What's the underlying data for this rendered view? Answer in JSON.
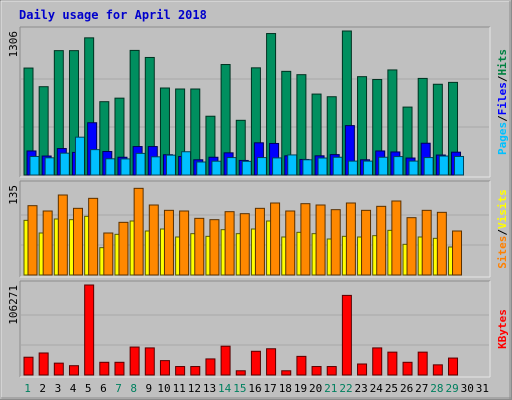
{
  "chart_data": {
    "type": "bar",
    "title": "Daily usage for April 2018",
    "days": [
      1,
      2,
      3,
      4,
      5,
      6,
      7,
      8,
      9,
      10,
      11,
      12,
      13,
      14,
      15,
      16,
      17,
      18,
      19,
      20,
      21,
      22,
      23,
      24,
      25,
      26,
      27,
      28,
      29,
      30,
      31
    ],
    "weekend_days": [
      1,
      7,
      8,
      14,
      15,
      21,
      22,
      28,
      29
    ],
    "panels": [
      {
        "id": "hits",
        "ymax_label": "1306",
        "ymax": 1306,
        "right_labels": [
          {
            "text": "Hits",
            "color": "#008040"
          },
          {
            "text": "/",
            "color": "#000000"
          },
          {
            "text": "Files",
            "color": "#0000ff"
          },
          {
            "text": "/",
            "color": "#000000"
          },
          {
            "text": "Pages",
            "color": "#00c0ff"
          }
        ],
        "series": [
          {
            "name": "Hits",
            "color": "#008f5f",
            "values": [
              970,
              801,
              1128,
              1128,
              1244,
              665,
              697,
              1130,
              1066,
              789,
              780,
              780,
              533,
              1002,
              496,
              972,
              1283,
              940,
              910,
              734,
              710,
              1306,
              892,
              866,
              953,
              616,
              876,
              823,
              840,
              0,
              0
            ]
          },
          {
            "name": "Files",
            "color": "#0000ff",
            "values": [
              218,
              172,
              240,
              205,
              474,
              213,
              161,
              258,
              258,
              184,
              168,
              138,
              161,
              201,
              132,
              292,
              286,
              174,
              141,
              174,
              185,
              448,
              138,
              218,
              209,
              154,
              288,
              181,
              207,
              0,
              0
            ]
          },
          {
            "name": "Pages",
            "color": "#00c0ff",
            "values": [
              168,
              156,
              198,
              343,
              230,
              147,
              146,
              196,
              165,
              180,
              211,
              118,
              125,
              158,
              124,
              158,
              155,
              182,
              138,
              154,
              161,
              126,
              126,
              161,
              167,
              126,
              158,
              172,
              168,
              0,
              0
            ]
          }
        ]
      },
      {
        "id": "visits",
        "ymax_label": "135",
        "ymax": 135,
        "right_labels": [
          {
            "text": "Visits",
            "color": "#ffff00"
          },
          {
            "text": "/",
            "color": "#000000"
          },
          {
            "text": "Sites",
            "color": "#ff8000"
          }
        ],
        "series": [
          {
            "name": "Visits",
            "color": "#ffff00",
            "values": [
              82,
              63,
              84,
              83,
              88,
              41,
              61,
              81,
              66,
              69,
              57,
              62,
              58,
              68,
              62,
              69,
              81,
              57,
              64,
              62,
              54,
              58,
              57,
              59,
              67,
              46,
              57,
              55,
              42,
              0,
              0
            ]
          },
          {
            "name": "Sites",
            "color": "#ff8800",
            "values": [
              104,
              96,
              120,
              100,
              115,
              63,
              79,
              130,
              105,
              97,
              96,
              85,
              83,
              95,
              92,
              100,
              108,
              96,
              107,
              105,
              98,
              108,
              97,
              103,
              111,
              86,
              97,
              94,
              66,
              0,
              0
            ]
          }
        ]
      },
      {
        "id": "kbytes",
        "ymax_label": "106271",
        "ymax": 106271,
        "right_labels": [
          {
            "text": "KBytes",
            "color": "#ff0000"
          }
        ],
        "series": [
          {
            "name": "KBytes",
            "color": "#ff0000",
            "values": [
              21000,
              26000,
              14000,
              11000,
              106271,
              15000,
              15000,
              33000,
              32000,
              17000,
              10000,
              10000,
              19000,
              34000,
              5000,
              28000,
              31000,
              5000,
              22000,
              10000,
              10000,
              94000,
              13000,
              32000,
              27000,
              15000,
              27000,
              12000,
              20000,
              0,
              0
            ]
          }
        ]
      }
    ]
  }
}
